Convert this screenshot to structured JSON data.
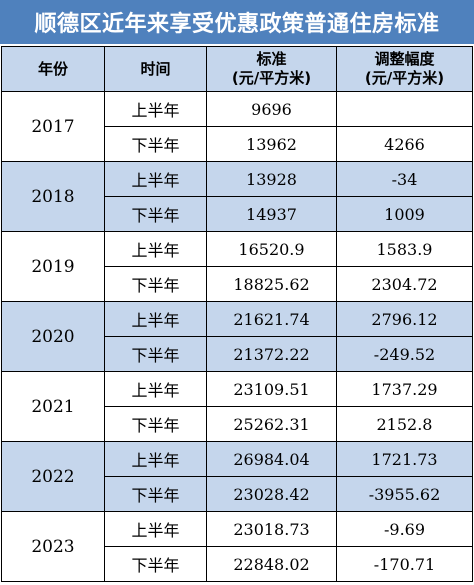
{
  "title": "顺德区近年来享受优惠政策普通住房标准",
  "headers": {
    "year": "年份",
    "period": "时间",
    "standard_line1": "标准",
    "standard_line2": "(元/平方米)",
    "adjust_line1": "调整幅度",
    "adjust_line2": "(元/平方米)"
  },
  "years": [
    {
      "year": "2017",
      "rows": [
        {
          "period": "上半年",
          "standard": "9696",
          "adjust": ""
        },
        {
          "period": "下半年",
          "standard": "13962",
          "adjust": "4266"
        }
      ]
    },
    {
      "year": "2018",
      "rows": [
        {
          "period": "上半年",
          "standard": "13928",
          "adjust": "-34"
        },
        {
          "period": "下半年",
          "standard": "14937",
          "adjust": "1009"
        }
      ]
    },
    {
      "year": "2019",
      "rows": [
        {
          "period": "上半年",
          "standard": "16520.9",
          "adjust": "1583.9"
        },
        {
          "period": "下半年",
          "standard": "18825.62",
          "adjust": "2304.72"
        }
      ]
    },
    {
      "year": "2020",
      "rows": [
        {
          "period": "上半年",
          "standard": "21621.74",
          "adjust": "2796.12"
        },
        {
          "period": "下半年",
          "standard": "21372.22",
          "adjust": "-249.52"
        }
      ]
    },
    {
      "year": "2021",
      "rows": [
        {
          "period": "上半年",
          "standard": "23109.51",
          "adjust": "1737.29"
        },
        {
          "period": "下半年",
          "standard": "25262.31",
          "adjust": "2152.8"
        }
      ]
    },
    {
      "year": "2022",
      "rows": [
        {
          "period": "上半年",
          "standard": "26984.04",
          "adjust": "1721.73"
        },
        {
          "period": "下半年",
          "standard": "23028.42",
          "adjust": "-3955.62"
        }
      ]
    },
    {
      "year": "2023",
      "rows": [
        {
          "period": "上半年",
          "standard": "23018.73",
          "adjust": "-9.69"
        },
        {
          "period": "下半年",
          "standard": "22848.02",
          "adjust": "-170.71"
        }
      ]
    }
  ],
  "colors": {
    "banner_bg": "#4f81bd",
    "banner_text": "#ffffff",
    "shade": "#c5d6ec",
    "border": "#000000"
  }
}
